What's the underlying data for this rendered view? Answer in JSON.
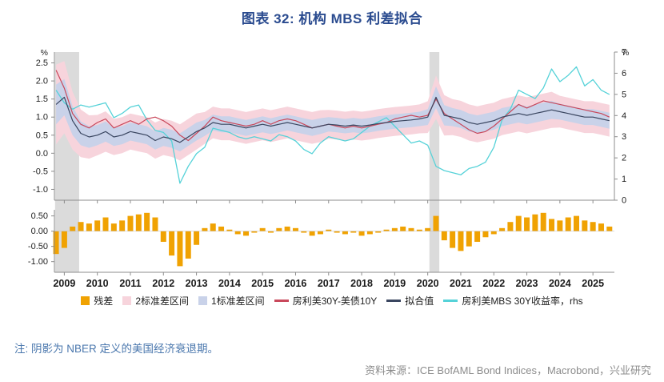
{
  "note": "注: 阴影为 NBER 定义的美国经济衰退期。",
  "source": "资料来源：ICE BofAML Bond Indices，Macrobond，兴业研究",
  "colors": {
    "recession": "#DBDBDB",
    "band_2sd": "#F7D4DC",
    "band_1sd": "#C9D2E9",
    "spread": "#C9485B",
    "fitted": "#3A4660",
    "yield": "#55D2D8",
    "residual": "#F0A202",
    "axis": "#8C8C8C",
    "tick_text": "#222222",
    "year_text": "#1A1A1A"
  },
  "chart_data": {
    "type": "line",
    "title": "图表 32: 机构 MBS 利差拟合",
    "x_range": [
      2008.7,
      2025.65
    ],
    "x_ticks": [
      2009,
      2010,
      2011,
      2012,
      2013,
      2014,
      2015,
      2016,
      2017,
      2018,
      2019,
      2020,
      2021,
      2022,
      2023,
      2024,
      2025
    ],
    "recessions": [
      [
        2008.72,
        2009.45
      ],
      [
        2020.05,
        2020.35
      ]
    ],
    "x": [
      2008.75,
      2009,
      2009.25,
      2009.5,
      2009.75,
      2010,
      2010.25,
      2010.5,
      2010.75,
      2011,
      2011.25,
      2011.5,
      2011.75,
      2012,
      2012.25,
      2012.5,
      2012.75,
      2013,
      2013.25,
      2013.5,
      2013.75,
      2014,
      2014.25,
      2014.5,
      2014.75,
      2015,
      2015.25,
      2015.5,
      2015.75,
      2016,
      2016.25,
      2016.5,
      2016.75,
      2017,
      2017.25,
      2017.5,
      2017.75,
      2018,
      2018.25,
      2018.5,
      2018.75,
      2019,
      2019.25,
      2019.5,
      2019.75,
      2020,
      2020.25,
      2020.5,
      2020.75,
      2021,
      2021.25,
      2021.5,
      2021.75,
      2022,
      2022.25,
      2022.5,
      2022.75,
      2023,
      2023.25,
      2023.5,
      2023.75,
      2024,
      2024.25,
      2024.5,
      2024.75,
      2025,
      2025.25,
      2025.5
    ],
    "main_panel": {
      "left_axis": {
        "label": "%",
        "range": [
          -1.3,
          2.8
        ],
        "ticks": [
          2.5,
          2,
          1.5,
          1,
          0.5,
          0,
          -0.5,
          -1
        ],
        "tick_labels": [
          "2.5",
          "2.0",
          "1.5",
          "1.0",
          "0.5",
          "0.0",
          "-0.5",
          "-1.0"
        ]
      },
      "right_axis": {
        "label": "%",
        "range": [
          0,
          7
        ],
        "ticks": [
          7,
          6,
          5,
          4,
          3,
          2,
          1,
          0
        ],
        "tick_labels": [
          "7",
          "6",
          "5",
          "4",
          "3",
          "2",
          "1",
          "0"
        ]
      },
      "actual": [
        2.3,
        1.8,
        1.1,
        0.8,
        0.7,
        0.85,
        0.95,
        0.7,
        0.8,
        0.9,
        0.8,
        0.95,
        1.0,
        0.9,
        0.75,
        0.5,
        0.35,
        0.55,
        0.75,
        1.0,
        0.9,
        0.85,
        0.8,
        0.75,
        0.8,
        0.9,
        0.8,
        0.9,
        0.95,
        0.9,
        0.8,
        0.7,
        0.75,
        0.8,
        0.75,
        0.7,
        0.75,
        0.7,
        0.75,
        0.8,
        0.85,
        0.95,
        1.0,
        1.05,
        1.0,
        1.05,
        1.5,
        1.1,
        0.95,
        0.8,
        0.65,
        0.55,
        0.6,
        0.75,
        0.95,
        1.15,
        1.35,
        1.25,
        1.35,
        1.45,
        1.4,
        1.35,
        1.3,
        1.25,
        1.2,
        1.15,
        1.1,
        1.0
      ],
      "fitted": [
        1.35,
        1.55,
        0.9,
        0.55,
        0.45,
        0.5,
        0.6,
        0.45,
        0.5,
        0.6,
        0.55,
        0.5,
        0.35,
        0.45,
        0.4,
        0.3,
        0.45,
        0.6,
        0.7,
        0.85,
        0.8,
        0.8,
        0.75,
        0.7,
        0.75,
        0.8,
        0.75,
        0.8,
        0.85,
        0.8,
        0.75,
        0.7,
        0.75,
        0.8,
        0.78,
        0.75,
        0.78,
        0.75,
        0.78,
        0.82,
        0.85,
        0.88,
        0.9,
        0.92,
        0.95,
        1.0,
        1.55,
        1.05,
        1.0,
        0.95,
        0.85,
        0.8,
        0.85,
        0.9,
        1.0,
        1.05,
        1.1,
        1.05,
        1.1,
        1.15,
        1.2,
        1.15,
        1.1,
        1.05,
        1.0,
        1.0,
        0.95,
        0.9
      ],
      "sigma": [
        0.55,
        0.5,
        0.4,
        0.33,
        0.3,
        0.28,
        0.28,
        0.25,
        0.25,
        0.25,
        0.25,
        0.25,
        0.25,
        0.25,
        0.25,
        0.25,
        0.25,
        0.25,
        0.22,
        0.22,
        0.22,
        0.22,
        0.22,
        0.22,
        0.22,
        0.22,
        0.22,
        0.22,
        0.22,
        0.22,
        0.22,
        0.22,
        0.22,
        0.2,
        0.2,
        0.2,
        0.2,
        0.2,
        0.2,
        0.2,
        0.2,
        0.2,
        0.2,
        0.2,
        0.2,
        0.22,
        0.3,
        0.28,
        0.25,
        0.25,
        0.25,
        0.25,
        0.25,
        0.25,
        0.25,
        0.25,
        0.25,
        0.25,
        0.25,
        0.25,
        0.25,
        0.22,
        0.22,
        0.22,
        0.22,
        0.22,
        0.22,
        0.22
      ],
      "yield_rhs": [
        5.2,
        4.6,
        4.3,
        4.5,
        4.4,
        4.5,
        4.6,
        3.9,
        4.1,
        4.4,
        4.5,
        3.8,
        3.3,
        3.2,
        2.8,
        0.8,
        1.6,
        2.2,
        2.5,
        3.4,
        3.3,
        3.2,
        3.0,
        2.9,
        3.0,
        2.9,
        2.8,
        3.1,
        3.0,
        2.8,
        2.4,
        2.2,
        2.7,
        3.0,
        2.9,
        2.8,
        2.9,
        3.2,
        3.5,
        3.7,
        3.9,
        3.5,
        3.1,
        2.7,
        2.8,
        2.6,
        1.6,
        1.4,
        1.3,
        1.2,
        1.5,
        1.6,
        1.8,
        2.5,
        3.8,
        4.3,
        5.2,
        5.0,
        4.8,
        5.3,
        6.2,
        5.6,
        5.9,
        6.3,
        5.4,
        5.7,
        5.2,
        5.0
      ]
    },
    "residual_panel": {
      "axis": {
        "range": [
          -1.35,
          0.7
        ],
        "ticks": [
          0.5,
          0,
          -0.5,
          -1
        ],
        "tick_labels": [
          "0.50",
          "0.00",
          "-0.50",
          "-1.00"
        ]
      },
      "values": [
        -0.75,
        -0.55,
        0.15,
        0.3,
        0.25,
        0.35,
        0.45,
        0.25,
        0.35,
        0.5,
        0.55,
        0.6,
        0.45,
        -0.35,
        -0.8,
        -1.15,
        -0.9,
        -0.45,
        0.1,
        0.25,
        0.15,
        0.05,
        -0.1,
        -0.15,
        -0.05,
        0.1,
        -0.05,
        0.1,
        0.15,
        0.1,
        -0.05,
        -0.15,
        -0.1,
        0.05,
        -0.05,
        -0.1,
        -0.05,
        -0.15,
        -0.1,
        -0.05,
        0.05,
        0.1,
        0.15,
        0.1,
        0.05,
        0.1,
        0.5,
        -0.3,
        -0.55,
        -0.65,
        -0.5,
        -0.35,
        -0.2,
        -0.1,
        0.1,
        0.3,
        0.5,
        0.45,
        0.55,
        0.6,
        0.4,
        0.35,
        0.45,
        0.5,
        0.35,
        0.3,
        0.25,
        0.15
      ]
    },
    "legend": [
      {
        "key": "residual",
        "label": "残差",
        "swatch": "square",
        "color": "#F0A202"
      },
      {
        "key": "band-2sd",
        "label": "2标准差区间",
        "swatch": "square",
        "color": "#F7D4DC"
      },
      {
        "key": "band-1sd",
        "label": "1标准差区间",
        "swatch": "square",
        "color": "#C9D2E9"
      },
      {
        "key": "spread",
        "label": "房利美30Y-美债10Y",
        "swatch": "line",
        "color": "#C9485B"
      },
      {
        "key": "fitted",
        "label": "拟合值",
        "swatch": "line",
        "color": "#3A4660"
      },
      {
        "key": "mbs-yield",
        "label": "房利美MBS 30Y收益率，rhs",
        "swatch": "line",
        "color": "#55D2D8"
      }
    ]
  }
}
